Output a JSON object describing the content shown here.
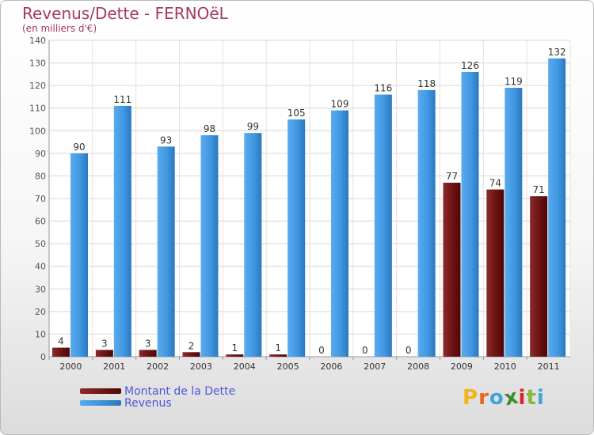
{
  "chart_data": {
    "type": "bar",
    "title": "Revenus/Dette - FERNOëL",
    "subtitle": "(en milliers d'€)",
    "xlabel": "",
    "ylabel": "",
    "ylim": [
      0,
      140
    ],
    "yticks": [
      0,
      10,
      20,
      30,
      40,
      50,
      60,
      70,
      80,
      90,
      100,
      110,
      120,
      130,
      140
    ],
    "grid": true,
    "legend_position": "bottom-left",
    "categories": [
      "2000",
      "2001",
      "2002",
      "2003",
      "2004",
      "2005",
      "2006",
      "2007",
      "2008",
      "2009",
      "2010",
      "2011"
    ],
    "series": [
      {
        "name": "Montant de la Dette",
        "color": "#7a1a1a",
        "values": [
          4,
          3,
          3,
          2,
          1,
          1,
          0,
          0,
          0,
          77,
          74,
          71
        ]
      },
      {
        "name": "Revenus",
        "color": "#3d93d8",
        "values": [
          90,
          111,
          93,
          98,
          99,
          105,
          109,
          116,
          118,
          126,
          119,
          132
        ]
      }
    ]
  },
  "legend": {
    "debt_label": "Montant de la Dette",
    "revenue_label": "Revenus"
  },
  "logo": {
    "letters": [
      "P",
      "r",
      "o",
      "x",
      "i",
      "t",
      "i"
    ],
    "colors": [
      "#f0b41c",
      "#e8661e",
      "#3aa7d7",
      "#3b8c2e",
      "#d6262b",
      "#8ab53a",
      "#3aa7d7"
    ]
  }
}
